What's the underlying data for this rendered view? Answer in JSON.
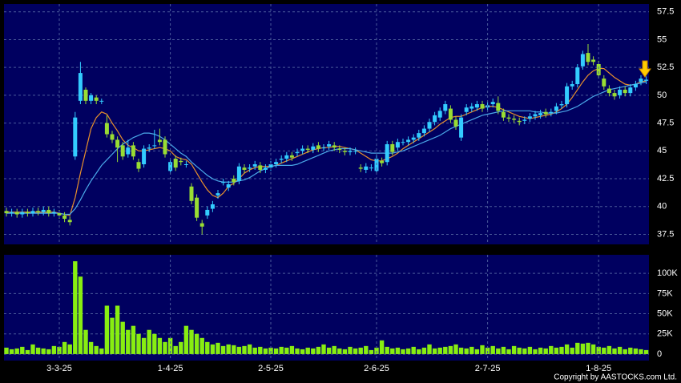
{
  "chart_data": [
    {
      "type": "candlestick",
      "up_color": "#33ccff",
      "down_color": "#99dd33",
      "open": [
        39.6,
        39.4,
        39.5,
        39.3,
        39.5,
        39.4,
        39.6,
        39.5,
        39.7,
        39.4,
        39.4,
        39.2,
        38.8,
        44.5,
        49.5,
        50.5,
        49.5,
        49.8,
        49.5,
        47.5,
        46.5,
        46,
        45.5,
        44.7,
        45.5,
        44,
        43.8,
        45.2,
        45.5,
        46,
        46,
        43.2,
        44.3,
        44.1,
        43.8,
        41.8,
        40.8,
        38.5,
        39.2,
        39.8,
        41,
        42.2,
        41.7,
        42.5,
        42.3,
        43.5,
        43.4,
        43.6,
        43.7,
        43.3,
        43.5,
        43.8,
        44.2,
        44.3,
        44.6,
        44.8,
        45,
        45.2,
        45.1,
        45.5,
        45.3,
        45.4,
        45.5,
        45.2,
        45,
        44.9,
        45,
        43.5,
        43.3,
        43.5,
        43.2,
        44.1,
        44,
        45.6,
        45.3,
        45.8,
        45.8,
        46,
        46.2,
        46.6,
        47,
        47.6,
        48,
        48.6,
        48.8,
        47.8,
        46.2,
        48.5,
        48.8,
        48.9,
        49.2,
        48.9,
        49.2,
        49.3,
        48.5,
        48,
        47.9,
        47.7,
        47.7,
        47.9,
        48.1,
        48.2,
        48.5,
        48.4,
        48.6,
        49.1,
        49.2,
        50.8,
        51,
        52.6,
        53.8,
        53.2,
        52.8,
        51.5,
        50.6,
        50.2,
        50,
        50.5,
        50.2,
        50.7,
        51.2,
        51.3
      ],
      "high": [
        39.9,
        39.8,
        39.8,
        39.8,
        39.8,
        39.9,
        39.9,
        40,
        40,
        39.8,
        39.7,
        39.5,
        39.1,
        48.5,
        53,
        50.7,
        50.2,
        50,
        49.7,
        48.2,
        46.8,
        46.3,
        45.8,
        46,
        45.8,
        44.3,
        45.5,
        45.6,
        46.9,
        47,
        46.3,
        44.3,
        44.6,
        44.4,
        44.1,
        42.1,
        41.1,
        38.8,
        40,
        40.5,
        41.5,
        42.5,
        42.3,
        42.8,
        43.9,
        43.8,
        43.8,
        44.1,
        44,
        43.8,
        44.1,
        44.3,
        44.6,
        44.9,
        44.9,
        45.2,
        45.5,
        45.5,
        45.7,
        45.8,
        45.6,
        45.9,
        45.8,
        45.5,
        45.3,
        45.3,
        45.3,
        43.8,
        43.9,
        43.8,
        44.6,
        44.4,
        45.9,
        45.9,
        46.1,
        46.1,
        46.3,
        46.5,
        46.9,
        47.3,
        47.9,
        48.5,
        48.9,
        49.5,
        49.1,
        48.1,
        48.3,
        49.2,
        49.3,
        49.5,
        49.5,
        49.4,
        49.7,
        49.9,
        48.8,
        48.3,
        48.2,
        48,
        48.1,
        48.4,
        48.6,
        48.7,
        48.8,
        48.8,
        49.3,
        49.5,
        51.1,
        51.3,
        52.8,
        54,
        54.6,
        53.5,
        53.1,
        51.8,
        50.9,
        50.5,
        50.8,
        50.8,
        51,
        51.3,
        51.8,
        51.7
      ],
      "low": [
        39.1,
        39.1,
        39,
        39,
        39.1,
        39.1,
        39.2,
        39.2,
        39.1,
        39.1,
        38.9,
        38.6,
        38.3,
        44.2,
        49.2,
        49.2,
        49.2,
        49.2,
        49.2,
        46.2,
        45.7,
        44,
        44.2,
        44.4,
        44.2,
        43.1,
        43.5,
        44.9,
        45.2,
        45.5,
        44.4,
        42.9,
        43.2,
        43.7,
        43.5,
        40.2,
        38.7,
        37.5,
        38.9,
        39.5,
        40.7,
        41.9,
        41.4,
        41.9,
        42,
        43,
        43.1,
        43.3,
        43,
        43,
        43.2,
        43.5,
        43.9,
        44,
        44.1,
        44.5,
        44.7,
        44.8,
        44.8,
        44.9,
        45,
        45.1,
        45,
        44.8,
        44.6,
        44.6,
        44.7,
        43.1,
        43,
        43.2,
        42.9,
        43.6,
        43.7,
        44.6,
        45,
        45.5,
        45.5,
        45.7,
        45.9,
        46.3,
        46.7,
        47.3,
        47.7,
        48.3,
        47.5,
        46.9,
        45.9,
        48.2,
        48.5,
        48.6,
        48.5,
        48.6,
        48.9,
        48.3,
        47.7,
        47.6,
        47.5,
        47.3,
        47.4,
        47.6,
        47.8,
        47.9,
        48,
        48.1,
        48.3,
        48.8,
        48.9,
        50.5,
        50.7,
        52.3,
        52.7,
        52.7,
        51.5,
        50.5,
        49.9,
        49.6,
        49.7,
        49.9,
        49.9,
        50.4,
        50.9,
        51
      ],
      "close": [
        39.4,
        39.5,
        39.3,
        39.5,
        39.4,
        39.6,
        39.5,
        39.7,
        39.4,
        39.5,
        39.2,
        38.9,
        38.6,
        48,
        52,
        49.5,
        50,
        49.5,
        49.5,
        46.5,
        46,
        45.3,
        44.5,
        45.3,
        44.5,
        43.4,
        45.2,
        45.3,
        45.5,
        45.8,
        44.7,
        44,
        43.5,
        44,
        43.8,
        40.5,
        39,
        38.2,
        39.7,
        40.2,
        41.2,
        42.2,
        42,
        42.2,
        43.6,
        43.3,
        43.5,
        43.8,
        43.3,
        43.5,
        43.8,
        44,
        44.3,
        44.6,
        44.4,
        44.9,
        45.2,
        45.1,
        45.4,
        45.2,
        45.3,
        45.6,
        45.3,
        45.1,
        44.9,
        45,
        45,
        43.4,
        43.6,
        43.5,
        44.3,
        43.9,
        45.6,
        44.9,
        45.8,
        45.8,
        46,
        46.2,
        46.6,
        47,
        47.6,
        48.2,
        48.6,
        49.2,
        47.8,
        47.2,
        48,
        48.9,
        49,
        49.2,
        48.8,
        49.1,
        49.4,
        48.6,
        48,
        47.9,
        47.8,
        47.6,
        47.8,
        48.1,
        48.3,
        48.4,
        48.3,
        48.5,
        49,
        49.2,
        50.8,
        51,
        52.5,
        53.7,
        53,
        53,
        51.8,
        50.8,
        50.2,
        49.9,
        50.5,
        50.2,
        50.7,
        51,
        51.5,
        51.4
      ],
      "series": [
        {
          "color": "#e8902c",
          "values": [
            39.5,
            39.5,
            39.5,
            39.5,
            39.5,
            39.5,
            39.5,
            39.5,
            39.5,
            39.5,
            39.4,
            39.3,
            39.2,
            40.8,
            43,
            45,
            47,
            48,
            48.5,
            48.3,
            47.5,
            46.8,
            46,
            45.5,
            45.3,
            45,
            45,
            45.1,
            45.2,
            45.3,
            45.2,
            45,
            44.5,
            44.3,
            44.2,
            43.8,
            43,
            42.2,
            41.5,
            41,
            40.8,
            41.2,
            41.8,
            42.1,
            42.5,
            43,
            43.3,
            43.5,
            43.6,
            43.6,
            43.6,
            43.7,
            43.9,
            44.1,
            44.3,
            44.5,
            44.7,
            44.9,
            45.1,
            45.2,
            45.3,
            45.3,
            45.4,
            45.4,
            45.3,
            45.2,
            45.1,
            44.8,
            44.5,
            44.2,
            44.1,
            44.1,
            44.3,
            44.5,
            44.8,
            45.2,
            45.5,
            45.8,
            46.1,
            46.4,
            46.7,
            47,
            47.4,
            47.7,
            48,
            48.1,
            48.1,
            48.3,
            48.5,
            48.7,
            48.9,
            49,
            49,
            48.9,
            48.7,
            48.5,
            48.3,
            48.1,
            48,
            47.9,
            48,
            48.1,
            48.2,
            48.3,
            48.5,
            48.8,
            49.2,
            49.8,
            50.5,
            51.2,
            51.8,
            52.2,
            52.4,
            52.4,
            52,
            51.6,
            51.3,
            51,
            50.9,
            51,
            51.2,
            51.3
          ]
        },
        {
          "color": "#4aa8e8",
          "values": [
            39.4,
            39.4,
            39.4,
            39.4,
            39.4,
            39.4,
            39.4,
            39.4,
            39.4,
            39.4,
            39.4,
            39.3,
            39.3,
            39.8,
            40.6,
            41.5,
            42.3,
            43,
            43.7,
            44.2,
            44.7,
            45.2,
            45.6,
            45.9,
            46.2,
            46.4,
            46.6,
            46.6,
            46.5,
            46.3,
            46,
            45.6,
            45.2,
            44.8,
            44.5,
            44,
            43.6,
            43.2,
            42.8,
            42.5,
            42.3,
            42.2,
            42.2,
            42.2,
            42.3,
            42.4,
            42.6,
            42.9,
            43.2,
            43.4,
            43.6,
            43.7,
            43.7,
            43.7,
            43.7,
            43.8,
            44,
            44.2,
            44.4,
            44.6,
            44.8,
            45,
            45.1,
            45.2,
            45.2,
            45.2,
            45.1,
            45,
            44.9,
            44.8,
            44.8,
            44.8,
            44.8,
            44.8,
            44.9,
            45,
            45.2,
            45.4,
            45.6,
            45.8,
            46,
            46.2,
            46.4,
            46.7,
            47,
            47.2,
            47.4,
            47.6,
            47.8,
            48,
            48.2,
            48.3,
            48.4,
            48.5,
            48.6,
            48.6,
            48.6,
            48.6,
            48.6,
            48.6,
            48.5,
            48.5,
            48.4,
            48.4,
            48.4,
            48.5,
            48.6,
            48.8,
            49,
            49.3,
            49.6,
            49.9,
            50.1,
            50.3,
            50.5,
            50.6,
            50.7,
            50.8,
            50.9,
            51,
            51.1,
            51.2
          ]
        }
      ],
      "ylim": [
        36.6,
        58.2
      ],
      "yticks": [
        37.5,
        40,
        42.5,
        45,
        47.5,
        50,
        52.5,
        55,
        57.5
      ],
      "grid": true
    },
    {
      "type": "bar",
      "color": "#88ee11",
      "categories": [
        null,
        null,
        null,
        null,
        null,
        null,
        null,
        null,
        null,
        null,
        "3-3-25",
        null,
        null,
        null,
        null,
        null,
        null,
        null,
        null,
        null,
        null,
        null,
        null,
        null,
        null,
        null,
        null,
        null,
        null,
        null,
        null,
        "1-4-25",
        null,
        null,
        null,
        null,
        null,
        null,
        null,
        null,
        null,
        null,
        null,
        null,
        null,
        null,
        null,
        null,
        null,
        null,
        "2-5-25",
        null,
        null,
        null,
        null,
        null,
        null,
        null,
        null,
        null,
        null,
        null,
        null,
        null,
        null,
        null,
        null,
        null,
        null,
        null,
        "2-6-25",
        null,
        null,
        null,
        null,
        null,
        null,
        null,
        null,
        null,
        null,
        null,
        null,
        null,
        null,
        null,
        null,
        null,
        null,
        null,
        null,
        "2-7-25",
        null,
        null,
        null,
        null,
        null,
        null,
        null,
        null,
        null,
        null,
        null,
        null,
        null,
        null,
        null,
        null,
        null,
        null,
        null,
        null,
        "1-8-25",
        null,
        null,
        null,
        null,
        null,
        null,
        null,
        null,
        null
      ],
      "values": [
        8000,
        6000,
        7000,
        9000,
        5000,
        12000,
        8000,
        7000,
        6000,
        10000,
        9000,
        15000,
        12000,
        115000,
        96000,
        30000,
        15000,
        10000,
        7000,
        60000,
        45000,
        60000,
        40000,
        30000,
        35000,
        25000,
        20000,
        30000,
        25000,
        20000,
        15000,
        20000,
        10000,
        15000,
        35000,
        30000,
        25000,
        20000,
        15000,
        12000,
        14000,
        10000,
        12000,
        11000,
        9000,
        10000,
        12000,
        8000,
        9000,
        7000,
        8000,
        7000,
        9000,
        8000,
        10000,
        7000,
        6000,
        8000,
        7000,
        9000,
        12000,
        8000,
        10000,
        7000,
        6000,
        9000,
        7000,
        8000,
        10000,
        5000,
        8000,
        17000,
        9000,
        7000,
        8000,
        6000,
        7000,
        9000,
        6000,
        8000,
        12000,
        7000,
        8000,
        9000,
        10000,
        12000,
        8000,
        7000,
        9000,
        6000,
        11000,
        8000,
        10000,
        7000,
        9000,
        6000,
        10000,
        8000,
        7000,
        9000,
        6000,
        8000,
        7000,
        10000,
        8000,
        9000,
        12000,
        8000,
        14000,
        13000,
        14000,
        12000,
        9000,
        8000,
        10000,
        7000,
        9000,
        6000,
        8000,
        7000,
        6000,
        5000
      ],
      "ylim": [
        -8000,
        123000
      ],
      "yticks": [
        {
          "value": 0,
          "label": "0"
        },
        {
          "value": 25000,
          "label": "25K"
        },
        {
          "value": 50000,
          "label": "50K"
        },
        {
          "value": 75000,
          "label": "75K"
        },
        {
          "value": 100000,
          "label": "100K"
        }
      ],
      "grid": true
    }
  ],
  "copyright": "Copyright by AASTOCKS.com Ltd."
}
